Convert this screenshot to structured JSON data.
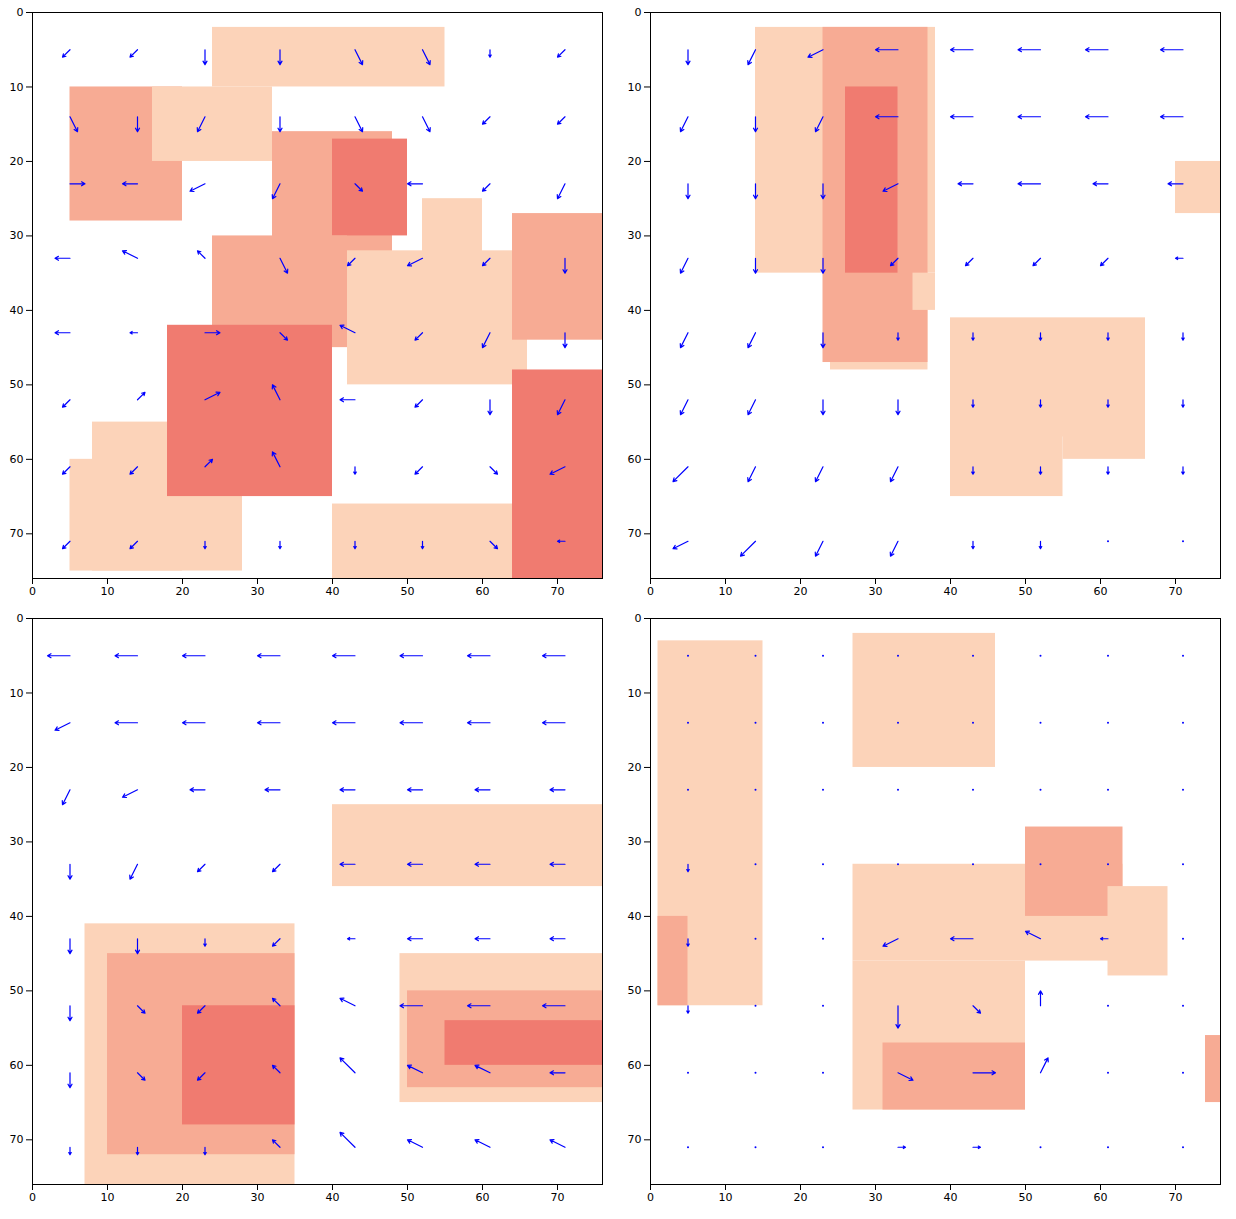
{
  "chart_data": [
    {
      "type": "vector",
      "color": "#0000ff",
      "xlim": [
        0,
        76
      ],
      "ylim": [
        76,
        0
      ],
      "xticks": [
        0,
        10,
        20,
        30,
        40,
        50,
        60,
        70
      ],
      "yticks": [
        0,
        10,
        20,
        30,
        40,
        50,
        60,
        70
      ],
      "region_colors": [
        "#fcd3b9",
        "#f7ab94",
        "#f07b70"
      ],
      "regions": [
        [
          5,
          20,
          10,
          28,
          2
        ],
        [
          16,
          32,
          10,
          20,
          1
        ],
        [
          24,
          42,
          2,
          10,
          1
        ],
        [
          42,
          55,
          2,
          10,
          1
        ],
        [
          32,
          48,
          16,
          40,
          2
        ],
        [
          40,
          50,
          17,
          30,
          3
        ],
        [
          24,
          42,
          30,
          45,
          2
        ],
        [
          8,
          28,
          55,
          75,
          1
        ],
        [
          5,
          20,
          60,
          75,
          1
        ],
        [
          18,
          40,
          42,
          65,
          3
        ],
        [
          42,
          66,
          32,
          50,
          1
        ],
        [
          52,
          60,
          25,
          35,
          1
        ],
        [
          64,
          76,
          27,
          44,
          2
        ],
        [
          64,
          76,
          48,
          76,
          3
        ],
        [
          40,
          64,
          66,
          76,
          1
        ]
      ],
      "grid_x": [
        5,
        14,
        23,
        33,
        43,
        52,
        61,
        71
      ],
      "grid_y": [
        5,
        14,
        23,
        33,
        43,
        52,
        61,
        71
      ],
      "u": [
        [
          -1,
          -1,
          0,
          0,
          1,
          1,
          0,
          -1
        ],
        [
          1,
          0,
          -1,
          0,
          1,
          1,
          -1,
          -1
        ],
        [
          2,
          -2,
          -2,
          -1,
          1,
          -2,
          -1,
          -1
        ],
        [
          -2,
          -2,
          -1,
          1,
          -1,
          -2,
          -1,
          0
        ],
        [
          -2,
          -1,
          2,
          1,
          -2,
          -1,
          -1,
          0
        ],
        [
          -1,
          1,
          2,
          -1,
          -2,
          -1,
          0,
          -1
        ],
        [
          -1,
          -1,
          1,
          -1,
          0,
          -1,
          1,
          -2
        ],
        [
          -1,
          -1,
          0,
          0,
          0,
          0,
          1,
          -1
        ]
      ],
      "v": [
        [
          1,
          1,
          2,
          2,
          2,
          2,
          1,
          1
        ],
        [
          2,
          2,
          2,
          2,
          2,
          2,
          1,
          1
        ],
        [
          0,
          0,
          1,
          2,
          1,
          0,
          1,
          2
        ],
        [
          0,
          -1,
          -1,
          2,
          1,
          1,
          1,
          2
        ],
        [
          0,
          0,
          0,
          1,
          -1,
          1,
          2,
          2
        ],
        [
          1,
          -1,
          -1,
          -2,
          0,
          1,
          2,
          2
        ],
        [
          1,
          1,
          -1,
          -2,
          1,
          1,
          1,
          1
        ],
        [
          1,
          1,
          1,
          1,
          1,
          1,
          1,
          0
        ]
      ]
    },
    {
      "type": "vector",
      "color": "#0000ff",
      "xlim": [
        0,
        76
      ],
      "ylim": [
        76,
        0
      ],
      "xticks": [
        0,
        10,
        20,
        30,
        40,
        50,
        60,
        70
      ],
      "yticks": [
        0,
        10,
        20,
        30,
        40,
        50,
        60,
        70
      ],
      "region_colors": [
        "#fcd3b9",
        "#f7ab94",
        "#f07b70"
      ],
      "regions": [
        [
          14,
          38,
          2,
          35,
          1
        ],
        [
          24,
          37,
          30,
          48,
          1
        ],
        [
          23,
          37,
          2,
          47,
          2
        ],
        [
          26,
          33,
          10,
          35,
          3
        ],
        [
          40,
          66,
          41,
          57,
          1
        ],
        [
          40,
          55,
          55,
          65,
          1
        ],
        [
          55,
          66,
          56,
          60,
          1
        ],
        [
          70,
          76,
          20,
          27,
          1
        ],
        [
          35,
          38,
          35,
          40,
          1
        ]
      ],
      "grid_x": [
        5,
        14,
        23,
        33,
        43,
        52,
        61,
        71
      ],
      "grid_y": [
        5,
        14,
        23,
        33,
        43,
        52,
        61,
        71
      ],
      "u": [
        [
          0,
          -1,
          -2,
          -3,
          -3,
          -3,
          -3,
          -3
        ],
        [
          -1,
          0,
          -1,
          -3,
          -3,
          -3,
          -3,
          -3
        ],
        [
          0,
          0,
          0,
          -2,
          -2,
          -3,
          -2,
          -2
        ],
        [
          -1,
          0,
          0,
          -1,
          -1,
          -1,
          -1,
          -1
        ],
        [
          -1,
          -1,
          0,
          0,
          0,
          0,
          0,
          0
        ],
        [
          -1,
          -1,
          0,
          0,
          0,
          0,
          0,
          0
        ],
        [
          -2,
          -1,
          -1,
          -1,
          0,
          0,
          0,
          0
        ],
        [
          -2,
          -2,
          -1,
          -1,
          0,
          0,
          0,
          0
        ]
      ],
      "v": [
        [
          2,
          2,
          1,
          0,
          0,
          0,
          0,
          0
        ],
        [
          2,
          2,
          2,
          0,
          0,
          0,
          0,
          0
        ],
        [
          2,
          2,
          2,
          1,
          0,
          0,
          0,
          0
        ],
        [
          2,
          2,
          2,
          1,
          1,
          1,
          1,
          0
        ],
        [
          2,
          2,
          2,
          1,
          1,
          1,
          1,
          1
        ],
        [
          2,
          2,
          2,
          2,
          1,
          1,
          1,
          1
        ],
        [
          2,
          2,
          2,
          2,
          1,
          1,
          1,
          1
        ],
        [
          1,
          2,
          2,
          2,
          1,
          1,
          0,
          0
        ]
      ]
    },
    {
      "type": "vector",
      "color": "#0000ff",
      "xlim": [
        0,
        76
      ],
      "ylim": [
        76,
        0
      ],
      "xticks": [
        0,
        10,
        20,
        30,
        40,
        50,
        60,
        70
      ],
      "yticks": [
        0,
        10,
        20,
        30,
        40,
        50,
        60,
        70
      ],
      "region_colors": [
        "#fcd3b9",
        "#f7ab94",
        "#f07b70"
      ],
      "regions": [
        [
          40,
          76,
          25,
          36,
          1
        ],
        [
          7,
          35,
          41,
          76,
          1
        ],
        [
          10,
          35,
          45,
          72,
          2
        ],
        [
          20,
          35,
          52,
          68,
          3
        ],
        [
          49,
          76,
          45,
          65,
          1
        ],
        [
          50,
          76,
          50,
          63,
          2
        ],
        [
          55,
          76,
          54,
          60,
          3
        ]
      ],
      "grid_x": [
        5,
        14,
        23,
        33,
        43,
        52,
        61,
        71
      ],
      "grid_y": [
        5,
        14,
        23,
        33,
        43,
        52,
        61,
        71
      ],
      "u": [
        [
          -3,
          -3,
          -3,
          -3,
          -3,
          -3,
          -3,
          -3
        ],
        [
          -2,
          -3,
          -3,
          -3,
          -3,
          -3,
          -3,
          -3
        ],
        [
          -1,
          -2,
          -2,
          -2,
          -2,
          -2,
          -2,
          -2
        ],
        [
          0,
          -1,
          -1,
          -1,
          -2,
          -2,
          -2,
          -2
        ],
        [
          0,
          0,
          0,
          -1,
          -1,
          -2,
          -2,
          -2
        ],
        [
          0,
          1,
          -1,
          -1,
          -2,
          -3,
          -3,
          -3
        ],
        [
          0,
          1,
          -1,
          -1,
          -2,
          -2,
          -2,
          -2
        ],
        [
          0,
          0,
          0,
          -1,
          -2,
          -2,
          -2,
          -2
        ]
      ],
      "v": [
        [
          0,
          0,
          0,
          0,
          0,
          0,
          0,
          0
        ],
        [
          1,
          0,
          0,
          0,
          0,
          0,
          0,
          0
        ],
        [
          2,
          1,
          0,
          0,
          0,
          0,
          0,
          0
        ],
        [
          2,
          2,
          1,
          1,
          0,
          0,
          0,
          0
        ],
        [
          2,
          2,
          1,
          1,
          0,
          0,
          0,
          0
        ],
        [
          2,
          1,
          1,
          -1,
          -1,
          0,
          0,
          0
        ],
        [
          2,
          1,
          1,
          -1,
          -2,
          -1,
          -1,
          0
        ],
        [
          1,
          1,
          1,
          -1,
          -2,
          -1,
          -1,
          -1
        ]
      ]
    },
    {
      "type": "vector",
      "color": "#0000ff",
      "xlim": [
        0,
        76
      ],
      "ylim": [
        76,
        0
      ],
      "xticks": [
        0,
        10,
        20,
        30,
        40,
        50,
        60,
        70
      ],
      "yticks": [
        0,
        10,
        20,
        30,
        40,
        50,
        60,
        70
      ],
      "region_colors": [
        "#fcd3b9",
        "#f7ab94",
        "#f07b70"
      ],
      "regions": [
        [
          1,
          15,
          3,
          52,
          1
        ],
        [
          27,
          46,
          2,
          20,
          1
        ],
        [
          1,
          5,
          40,
          52,
          2
        ],
        [
          27,
          63,
          33,
          46,
          1
        ],
        [
          50,
          63,
          28,
          40,
          2
        ],
        [
          27,
          50,
          46,
          66,
          1
        ],
        [
          31,
          50,
          57,
          66,
          2
        ],
        [
          61,
          69,
          36,
          48,
          1
        ],
        [
          74,
          76,
          56,
          65,
          2
        ]
      ],
      "grid_x": [
        5,
        14,
        23,
        33,
        43,
        52,
        61,
        71
      ],
      "grid_y": [
        5,
        14,
        23,
        33,
        43,
        52,
        61,
        71
      ],
      "u": [
        [
          0,
          0,
          0,
          0,
          0,
          0,
          0,
          0
        ],
        [
          0,
          0,
          0,
          0,
          0,
          0,
          0,
          0
        ],
        [
          0,
          0,
          0,
          0,
          0,
          0,
          0,
          0
        ],
        [
          0,
          0,
          0,
          0,
          0,
          0,
          0,
          0
        ],
        [
          0,
          0,
          0,
          -2,
          -3,
          -2,
          -1,
          0
        ],
        [
          0,
          0,
          0,
          0,
          1,
          0,
          0,
          0
        ],
        [
          0,
          0,
          0,
          2,
          3,
          1,
          0,
          0
        ],
        [
          0,
          0,
          0,
          1,
          1,
          0,
          0,
          0
        ]
      ],
      "v": [
        [
          0,
          0,
          0,
          0,
          0,
          0,
          0,
          0
        ],
        [
          0,
          0,
          0,
          0,
          0,
          0,
          0,
          0
        ],
        [
          0,
          0,
          0,
          0,
          0,
          0,
          0,
          0
        ],
        [
          1,
          0,
          0,
          0,
          0,
          0,
          0,
          0
        ],
        [
          1,
          0,
          0,
          1,
          0,
          -1,
          0,
          0
        ],
        [
          1,
          0,
          0,
          3,
          1,
          -2,
          0,
          0
        ],
        [
          0,
          0,
          0,
          1,
          0,
          -2,
          0,
          0
        ],
        [
          0,
          0,
          0,
          0,
          0,
          0,
          0,
          0
        ]
      ]
    }
  ]
}
